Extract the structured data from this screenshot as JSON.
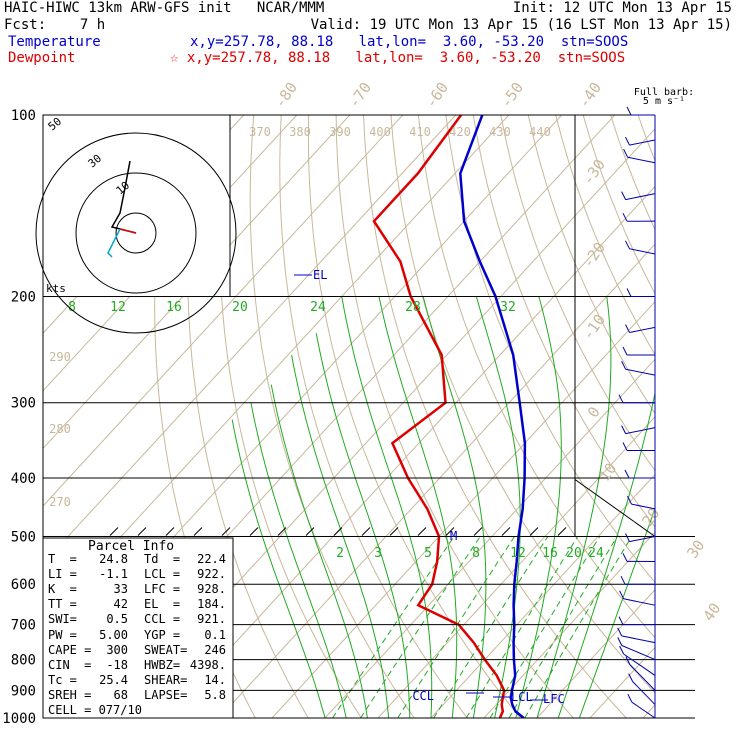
{
  "header": {
    "line1_left": "HAIC-HIWC 13km ARW-GFS init   NCAR/MMM",
    "line1_right": "Init: 12 UTC Mon 13 Apr 15",
    "line2_left": "Fcst:    7 h",
    "line2_right": "Valid: 19 UTC Mon 13 Apr 15 (16 LST Mon 13 Apr 15)",
    "temp_label": "Temperature",
    "temp_info": "x,y=257.78, 88.18   lat,lon=  3.60, -53.20  stn=SOOS",
    "dew_label": "Dewpoint",
    "dew_info": "☆ x,y=257.78, 88.18   lat,lon=  3.60, -53.20  stn=SOOS"
  },
  "colors": {
    "temperature": "#0000cc",
    "dewpoint": "#dd0000",
    "isotherm": "#c8b89a",
    "mixing_ratio": "#22aa22",
    "barb": "#0000aa",
    "hodograph_lowlevel": "#00aacc"
  },
  "chart_data": {
    "type": "line",
    "title": "HAIC-HIWC 13km ARW-GFS init NCAR/MMM",
    "chart_kind": "skew-T log-p sounding",
    "y_axis_scale": "log",
    "ylim": [
      1000,
      100
    ],
    "pressure_ticks": [
      "100",
      "200",
      "300",
      "400",
      "500",
      "600",
      "700",
      "800",
      "900",
      "1000"
    ],
    "isotherm_labels": [
      "-80",
      "-70",
      "-60",
      "-50",
      "-40",
      "-30",
      "-20",
      "-10",
      "0",
      "10",
      "20",
      "30",
      "40"
    ],
    "theta_labels": [
      "370",
      "380",
      "390",
      "400",
      "410",
      "420",
      "430",
      "440"
    ],
    "theta_lower_labels": [
      "290",
      "280",
      "270"
    ],
    "mixing_ratio_labels_upper": [
      "8",
      "12",
      "16",
      "20",
      "24",
      "28",
      "32"
    ],
    "mixing_ratio_labels_lower": [
      "2",
      "3",
      "5",
      "8",
      "12",
      "16",
      "20",
      "24"
    ],
    "series": [
      {
        "name": "Temperature",
        "points": [
          [
            1000,
            27.5
          ],
          [
            975,
            24.8
          ],
          [
            950,
            23
          ],
          [
            925,
            21.5
          ],
          [
            900,
            20.5
          ],
          [
            850,
            18.5
          ],
          [
            800,
            15.5
          ],
          [
            750,
            12.5
          ],
          [
            700,
            9.5
          ],
          [
            650,
            6
          ],
          [
            600,
            2.5
          ],
          [
            550,
            -1
          ],
          [
            500,
            -5
          ],
          [
            450,
            -9
          ],
          [
            400,
            -14
          ],
          [
            350,
            -20
          ],
          [
            300,
            -28
          ],
          [
            250,
            -37.5
          ],
          [
            200,
            -51
          ],
          [
            175,
            -60
          ],
          [
            150,
            -70
          ],
          [
            125,
            -79
          ],
          [
            100,
            -85
          ]
        ]
      },
      {
        "name": "Dewpoint",
        "points": [
          [
            1000,
            23
          ],
          [
            975,
            22.4
          ],
          [
            950,
            21
          ],
          [
            925,
            20
          ],
          [
            900,
            19
          ],
          [
            850,
            15
          ],
          [
            800,
            10
          ],
          [
            750,
            5
          ],
          [
            700,
            -1
          ],
          [
            650,
            -12
          ],
          [
            600,
            -13
          ],
          [
            550,
            -16
          ],
          [
            500,
            -20
          ],
          [
            450,
            -27
          ],
          [
            400,
            -36
          ],
          [
            350,
            -45
          ],
          [
            300,
            -42
          ],
          [
            250,
            -51
          ],
          [
            200,
            -67
          ],
          [
            175,
            -75
          ],
          [
            150,
            -87
          ],
          [
            125,
            -87
          ],
          [
            100,
            -89
          ]
        ]
      }
    ],
    "annotations": [
      "EL",
      "LCL",
      "CCL",
      "LFC",
      "M"
    ],
    "hodograph": {
      "ring_labels": [
        "10",
        "30",
        "50"
      ],
      "unit_label": "kts",
      "points": [
        [
          0,
          0
        ],
        [
          -8,
          2
        ],
        [
          -12,
          3
        ],
        [
          -8,
          10
        ],
        [
          -6,
          20
        ],
        [
          -3,
          36
        ]
      ],
      "low_level_points": [
        [
          -8,
          2
        ],
        [
          -14,
          -10
        ],
        [
          -12,
          -12
        ]
      ]
    },
    "wind_barbs": {
      "title": "Full barb:",
      "subtitle": "5 m s⁻¹",
      "entries": [
        [
          100,
          1,
          0
        ],
        [
          110,
          1.5,
          -0.5
        ],
        [
          120,
          2,
          0.5
        ],
        [
          135,
          2.5,
          -0.5
        ],
        [
          150,
          2,
          0
        ],
        [
          170,
          1.5,
          0.5
        ],
        [
          200,
          1,
          0
        ],
        [
          225,
          1.5,
          -0.5
        ],
        [
          250,
          2,
          0
        ],
        [
          270,
          2.5,
          0.5
        ],
        [
          300,
          3,
          0
        ],
        [
          330,
          2.5,
          -0.5
        ],
        [
          360,
          2,
          0
        ],
        [
          400,
          1.5,
          0
        ],
        [
          450,
          1,
          0.5
        ],
        [
          500,
          1.5,
          -0.5
        ],
        [
          550,
          2,
          0
        ],
        [
          600,
          2.5,
          0
        ],
        [
          650,
          3,
          0.5
        ],
        [
          700,
          3,
          0
        ],
        [
          750,
          3.5,
          0.5
        ],
        [
          800,
          4,
          1
        ],
        [
          850,
          4.5,
          1.5
        ],
        [
          900,
          4,
          2
        ],
        [
          950,
          3,
          2
        ],
        [
          1000,
          2,
          1.5
        ]
      ]
    }
  },
  "parcel_info": {
    "title": "Parcel Info",
    "rows": [
      [
        "T  =",
        "24.8",
        "Td  =",
        "22.4"
      ],
      [
        "LI =",
        "-1.1",
        "LCL =",
        "922."
      ],
      [
        "K  =",
        "33",
        "LFC =",
        "928."
      ],
      [
        "TT =",
        "42",
        "EL  =",
        "184."
      ],
      [
        "SWI=",
        "0.5",
        "CCL =",
        "921."
      ],
      [
        "PW =",
        "5.00",
        "YGP =",
        "0.1"
      ],
      [
        "CAPE =",
        "300",
        "SWEAT=",
        "246"
      ],
      [
        "CIN  =",
        "-18",
        "HWBZ=",
        "4398."
      ],
      [
        "Tc =",
        "25.4",
        "SHEAR=",
        "14."
      ],
      [
        "SREH =",
        "68",
        "LAPSE=",
        "5.8"
      ],
      [
        "CELL = 077/10",
        "",
        "",
        ""
      ]
    ]
  }
}
